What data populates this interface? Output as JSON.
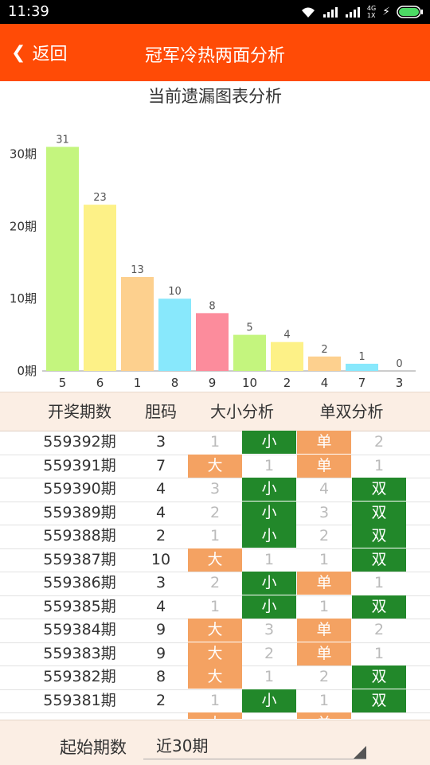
{
  "status": {
    "time": "11:39",
    "network_badge_top": "4G",
    "network_badge_bottom": "1X"
  },
  "appbar": {
    "back_label": "返回",
    "title": "冠军冷热两面分析"
  },
  "chart_title": "当前遗漏图表分析",
  "chart_data": {
    "type": "bar",
    "categories": [
      "5",
      "6",
      "1",
      "8",
      "9",
      "10",
      "2",
      "4",
      "7",
      "3"
    ],
    "values": [
      31,
      23,
      13,
      10,
      8,
      5,
      4,
      2,
      1,
      0
    ],
    "y_ticks": [
      "0期",
      "10期",
      "20期",
      "30期"
    ],
    "y_tick_values": [
      0,
      10,
      20,
      30
    ],
    "ylim": [
      0,
      31
    ],
    "bar_colors": [
      "#c4f57e",
      "#fdf187",
      "#fdd08e",
      "#88e8fc",
      "#fc8c9c",
      "#c4f57e",
      "#fdf187",
      "#fdd08e",
      "#88e8fc",
      "#fc8c9c"
    ]
  },
  "table": {
    "headers": [
      "开奖期数",
      "胆码",
      "大小分析",
      "单双分析"
    ],
    "rows": [
      {
        "period": "559392期",
        "num": "3",
        "big": "1",
        "small": "小",
        "odd": "单",
        "even": "2"
      },
      {
        "period": "559391期",
        "num": "7",
        "big": "大",
        "small": "1",
        "odd": "单",
        "even": "1"
      },
      {
        "period": "559390期",
        "num": "4",
        "big": "3",
        "small": "小",
        "odd": "4",
        "even": "双"
      },
      {
        "period": "559389期",
        "num": "4",
        "big": "2",
        "small": "小",
        "odd": "3",
        "even": "双"
      },
      {
        "period": "559388期",
        "num": "2",
        "big": "1",
        "small": "小",
        "odd": "2",
        "even": "双"
      },
      {
        "period": "559387期",
        "num": "10",
        "big": "大",
        "small": "1",
        "odd": "1",
        "even": "双"
      },
      {
        "period": "559386期",
        "num": "3",
        "big": "2",
        "small": "小",
        "odd": "单",
        "even": "1"
      },
      {
        "period": "559385期",
        "num": "4",
        "big": "1",
        "small": "小",
        "odd": "1",
        "even": "双"
      },
      {
        "period": "559384期",
        "num": "9",
        "big": "大",
        "small": "3",
        "odd": "单",
        "even": "2"
      },
      {
        "period": "559383期",
        "num": "9",
        "big": "大",
        "small": "2",
        "odd": "单",
        "even": "1"
      },
      {
        "period": "559382期",
        "num": "8",
        "big": "大",
        "small": "1",
        "odd": "2",
        "even": "双"
      },
      {
        "period": "559381期",
        "num": "2",
        "big": "1",
        "small": "小",
        "odd": "1",
        "even": "双"
      }
    ],
    "partial_row": {
      "big": "大",
      "odd": "单"
    }
  },
  "footer": {
    "label": "起始期数",
    "select_value": "近30期"
  },
  "colors": {
    "accent": "#ff4b06",
    "highlight_orange": "#f4a262",
    "highlight_green": "#22882a"
  }
}
